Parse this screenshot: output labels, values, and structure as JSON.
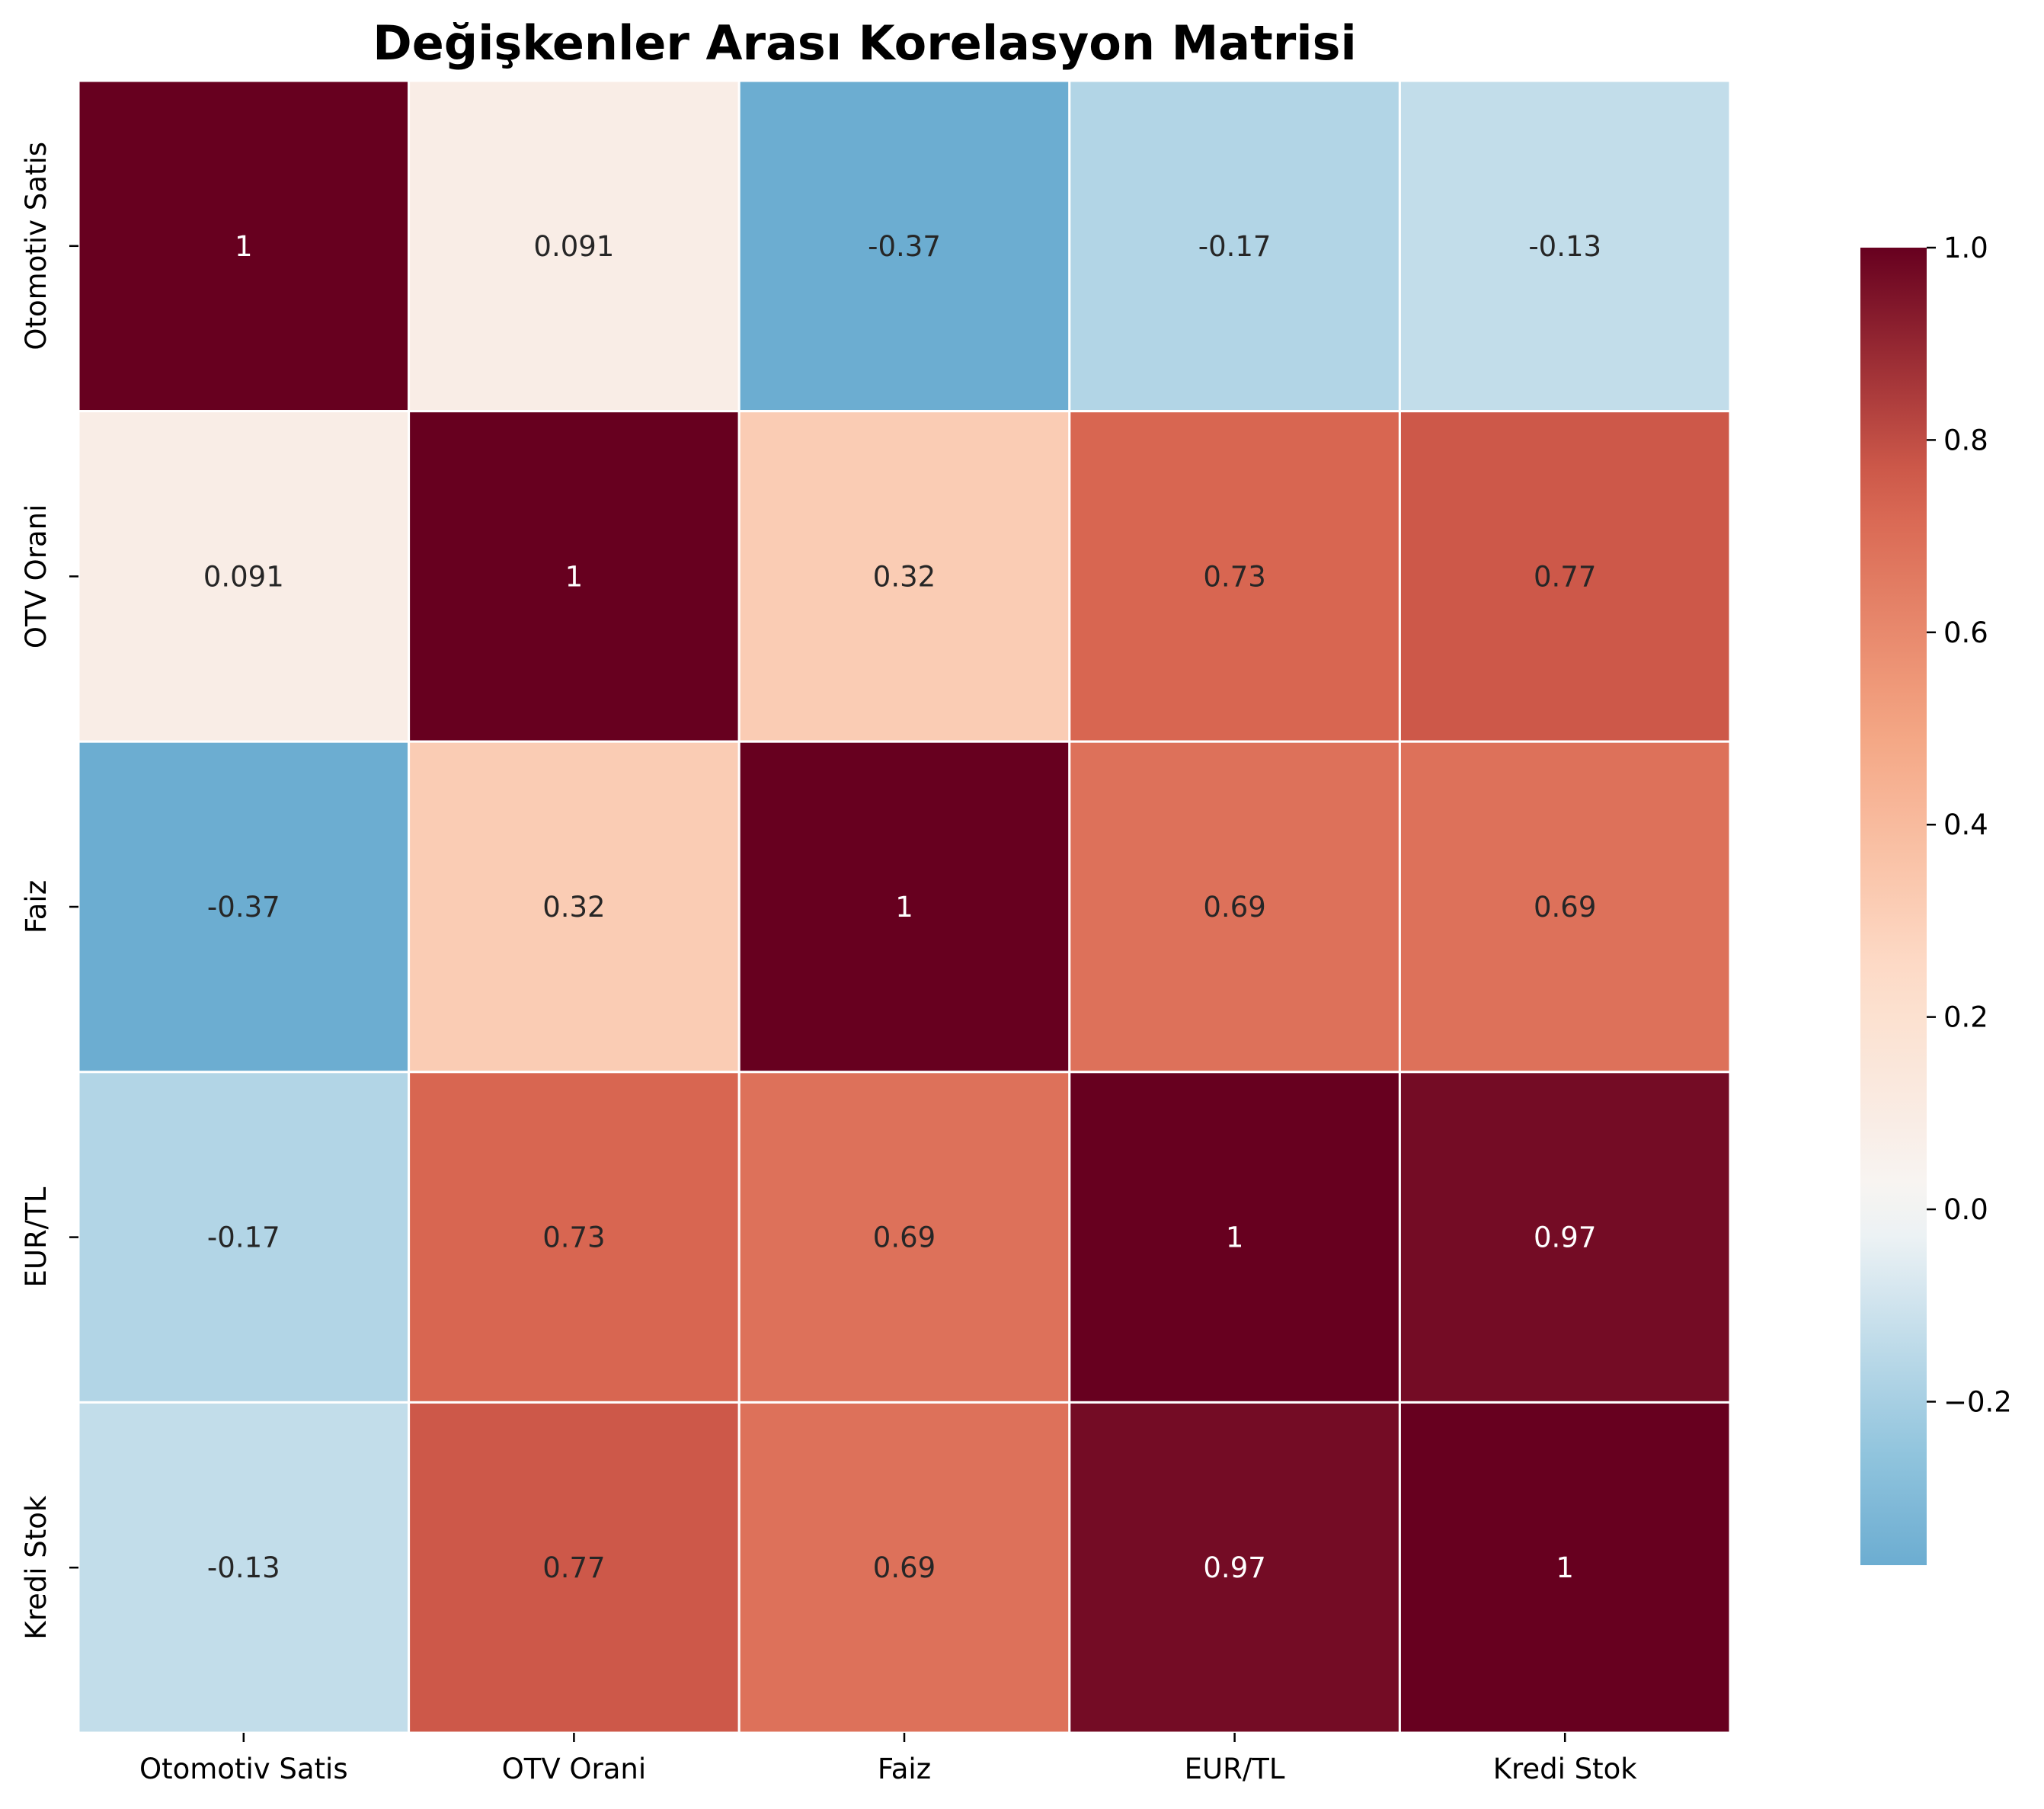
{
  "chart_data": {
    "type": "heatmap",
    "title": "Değişkenler Arası Korelasyon Matrisi",
    "xlabel": "",
    "ylabel": "",
    "x_categories": [
      "Otomotiv Satis",
      "OTV Orani",
      "Faiz",
      "EUR/TL",
      "Kredi Stok"
    ],
    "y_categories": [
      "Otomotiv Satis",
      "OTV Orani",
      "Faiz",
      "EUR/TL",
      "Kredi Stok"
    ],
    "values": [
      [
        1,
        0.091,
        -0.37,
        -0.17,
        -0.13
      ],
      [
        0.091,
        1,
        0.32,
        0.73,
        0.77
      ],
      [
        -0.37,
        0.32,
        1,
        0.69,
        0.69
      ],
      [
        -0.17,
        0.73,
        0.69,
        1,
        0.97
      ],
      [
        -0.13,
        0.77,
        0.69,
        0.97,
        1
      ]
    ],
    "cell_labels": [
      [
        "1",
        "0.091",
        "-0.37",
        "-0.17",
        "-0.13"
      ],
      [
        "0.091",
        "1",
        "0.32",
        "0.73",
        "0.77"
      ],
      [
        "-0.37",
        "0.32",
        "1",
        "0.69",
        "0.69"
      ],
      [
        "-0.17",
        "0.73",
        "0.69",
        "1",
        "0.97"
      ],
      [
        "-0.13",
        "0.77",
        "0.69",
        "0.97",
        "1"
      ]
    ],
    "colormap": "RdBu_r",
    "center": 0,
    "color_range": [
      -0.37,
      1.0
    ],
    "colorbar": {
      "ticks": [
        1.0,
        0.8,
        0.6,
        0.4,
        0.2,
        0.0,
        -0.2
      ],
      "tick_labels": [
        "1.0",
        "0.8",
        "0.6",
        "0.4",
        "0.2",
        "0.0",
        "−0.2"
      ],
      "placement": "right"
    },
    "grid": false,
    "cell_border_color": "#ffffff"
  }
}
